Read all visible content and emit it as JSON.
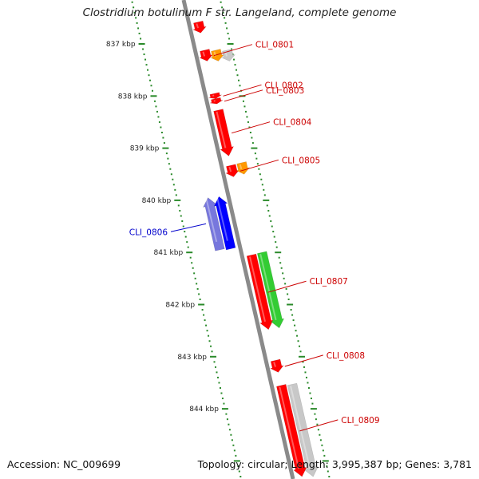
{
  "title": "Clostridium botulinum F str. Langeland, complete genome",
  "footer": {
    "accession": "Accession: NC_009699",
    "summary": "Topology: circular; Length: 3,995,387 bp; Genes: 3,781"
  },
  "colors": {
    "backbone": "#8a8a8a",
    "ticks": "#2a8a2a",
    "red": "#ff0000",
    "orange": "#ff9900",
    "gray": "#c8c8c8",
    "blue": "#0000ff",
    "lightblue": "#7777dd",
    "green": "#33cc33",
    "label_red": "#cc0000",
    "label_blue": "#0000cc"
  },
  "scale_ticks": [
    {
      "kbp": 837,
      "label": "837 kbp"
    },
    {
      "kbp": 838,
      "label": "838 kbp"
    },
    {
      "kbp": 839,
      "label": "839 kbp"
    },
    {
      "kbp": 840,
      "label": "840 kbp"
    },
    {
      "kbp": 841,
      "label": "841 kbp"
    },
    {
      "kbp": 842,
      "label": "842 kbp"
    },
    {
      "kbp": 843,
      "label": "843 kbp"
    },
    {
      "kbp": 844,
      "label": "844 kbp"
    }
  ],
  "genes": [
    {
      "label": "",
      "strand": "+",
      "start_kbp": 836.58,
      "end_kbp": 836.79,
      "color": "red"
    },
    {
      "label": "CLI_0801",
      "strand": "+",
      "start_kbp": 837.12,
      "end_kbp": 837.33,
      "color": "red"
    },
    {
      "label": "",
      "strand": "+",
      "start_kbp": 837.12,
      "end_kbp": 837.33,
      "color": "orange"
    },
    {
      "label": "",
      "strand": "+",
      "start_kbp": 837.12,
      "end_kbp": 837.33,
      "color": "gray"
    },
    {
      "label": "CLI_0802",
      "strand": "+",
      "start_kbp": 837.95,
      "end_kbp": 838.05,
      "color": "red"
    },
    {
      "label": "CLI_0803",
      "strand": "+",
      "start_kbp": 838.05,
      "end_kbp": 838.15,
      "color": "red"
    },
    {
      "label": "CLI_0804",
      "strand": "+",
      "start_kbp": 838.27,
      "end_kbp": 839.15,
      "color": "red"
    },
    {
      "label": "CLI_0805",
      "strand": "+",
      "start_kbp": 839.33,
      "end_kbp": 839.55,
      "color": "red"
    },
    {
      "label": "",
      "strand": "+",
      "start_kbp": 839.28,
      "end_kbp": 839.5,
      "color": "orange"
    },
    {
      "label": "CLI_0806",
      "strand": "-",
      "start_kbp": 839.95,
      "end_kbp": 840.95,
      "color": "lightblue"
    },
    {
      "label": "",
      "strand": "-",
      "start_kbp": 839.93,
      "end_kbp": 840.93,
      "color": "blue"
    },
    {
      "label": "CLI_0807",
      "strand": "+",
      "start_kbp": 841.05,
      "end_kbp": 842.48,
      "color": "red"
    },
    {
      "label": "",
      "strand": "+",
      "start_kbp": 841.0,
      "end_kbp": 842.45,
      "color": "green"
    },
    {
      "label": "CLI_0808",
      "strand": "+",
      "start_kbp": 843.07,
      "end_kbp": 843.3,
      "color": "red"
    },
    {
      "label": "CLI_0809",
      "strand": "+",
      "start_kbp": 843.55,
      "end_kbp": 845.3,
      "color": "red"
    },
    {
      "label": "",
      "strand": "+",
      "start_kbp": 843.53,
      "end_kbp": 845.3,
      "color": "gray"
    }
  ]
}
